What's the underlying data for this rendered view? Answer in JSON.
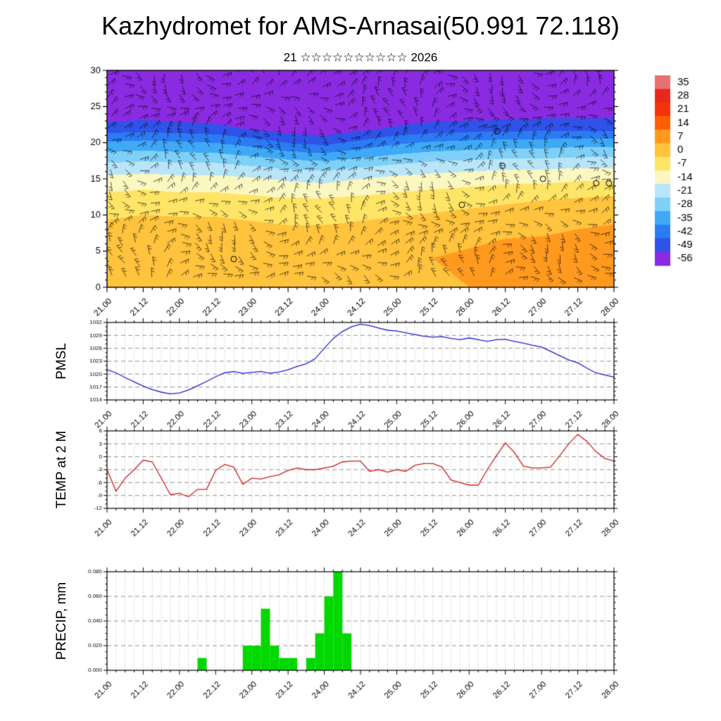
{
  "header": {
    "title": "Kazhydromet for AMS-Arnasai(50.991 72.118)",
    "subtitle": "21 ☆☆☆☆☆☆☆☆☆☆ 2026"
  },
  "panels": {
    "pmsl_label": "PMSL",
    "temp_label": "TEMP at 2 M",
    "precip_label": "PRECIP, mm"
  },
  "chart_data": [
    {
      "type": "heatmap",
      "name": "temperature-height-time-section",
      "ylim": [
        0,
        30
      ],
      "yticks": [
        0,
        5,
        10,
        15,
        20,
        25,
        30
      ],
      "x_labels": [
        "21.00",
        "21.12",
        "22.00",
        "22.12",
        "23.00",
        "23.12",
        "24.00",
        "24.12",
        "25.00",
        "25.12",
        "26.00",
        "26.12",
        "27.00",
        "27.12",
        "28.00"
      ],
      "overlay": "wind-barbs",
      "heights": [
        0,
        4,
        8,
        12,
        15,
        17,
        20,
        22,
        25,
        30
      ],
      "values": [
        [
          4,
          5,
          4,
          5,
          4,
          4,
          3,
          4,
          5,
          6,
          7,
          8,
          9,
          10,
          11
        ],
        [
          5,
          6,
          5,
          6,
          5,
          4,
          4,
          5,
          6,
          7,
          8,
          9,
          10,
          11,
          12
        ],
        [
          2,
          3,
          3,
          3,
          2,
          1,
          1,
          2,
          3,
          4,
          5,
          6,
          6,
          7,
          8
        ],
        [
          -4,
          -3,
          -4,
          -4,
          -5,
          -6,
          -6,
          -5,
          -4,
          -3,
          -2,
          -1,
          0,
          1,
          2
        ],
        [
          -12,
          -11,
          -12,
          -12,
          -13,
          -15,
          -16,
          -14,
          -12,
          -11,
          -10,
          -9,
          -9,
          -8,
          -8
        ],
        [
          -20,
          -19,
          -20,
          -20,
          -22,
          -24,
          -25,
          -23,
          -21,
          -19,
          -18,
          -17,
          -17,
          -16,
          -16
        ],
        [
          -34,
          -33,
          -34,
          -35,
          -38,
          -42,
          -44,
          -40,
          -36,
          -34,
          -33,
          -32,
          -32,
          -31,
          -31
        ],
        [
          -46,
          -45,
          -46,
          -47,
          -50,
          -53,
          -54,
          -51,
          -48,
          -46,
          -45,
          -45,
          -44,
          -44,
          -44
        ],
        [
          -56,
          -55,
          -56,
          -57,
          -58,
          -59,
          -59,
          -58,
          -57,
          -56,
          -56,
          -55,
          -55,
          -55,
          -55
        ],
        [
          -58,
          -58,
          -58,
          -58,
          -59,
          -60,
          -60,
          -59,
          -58,
          -58,
          -58,
          -58,
          -58,
          -58,
          -58
        ]
      ],
      "calm_markers": [
        [
          0.25,
          0.87
        ],
        [
          0.7,
          0.62
        ],
        [
          0.78,
          0.44
        ],
        [
          0.86,
          0.5
        ],
        [
          0.965,
          0.52
        ],
        [
          0.99,
          0.52
        ],
        [
          0.77,
          0.28
        ]
      ],
      "colorbar": {
        "labels": [
          "35",
          "28",
          "21",
          "14",
          "7",
          "0",
          "-7",
          "-14",
          "-21",
          "-28",
          "-35",
          "-42",
          "-49",
          "-56"
        ],
        "colors": [
          "#e87070",
          "#e8281e",
          "#f5330a",
          "#ff5f00",
          "#ff9a1f",
          "#ffc33d",
          "#ffe566",
          "#fbf7c0",
          "#b9e5f9",
          "#7fd0f8",
          "#3fa9f6",
          "#2b7bf3",
          "#2f52e8",
          "#8a2be2"
        ]
      }
    },
    {
      "type": "line",
      "name": "PMSL",
      "color": "#2020cc",
      "ylim": [
        1014,
        1032
      ],
      "yticks": [
        1014,
        1017,
        1020,
        1023,
        1026,
        1029,
        1032
      ],
      "yminor_div": 3,
      "values": [
        1021,
        1020.3,
        1019.2,
        1018.2,
        1017.2,
        1016.4,
        1015.8,
        1015.4,
        1015.6,
        1016.3,
        1017.3,
        1018.3,
        1019.4,
        1020.3,
        1020.6,
        1020.2,
        1020.4,
        1020.6,
        1020.2,
        1020.5,
        1021,
        1021.8,
        1022.4,
        1023.6,
        1026,
        1028.3,
        1029.9,
        1031,
        1031.6,
        1031.3,
        1030.7,
        1030.2,
        1030,
        1029.6,
        1029.2,
        1028.8,
        1028.6,
        1028.7,
        1028.3,
        1028,
        1028.4,
        1028,
        1027.6,
        1028,
        1028.1,
        1027.6,
        1027.2,
        1026.7,
        1026.3,
        1025.3,
        1024.3,
        1023.3,
        1022.6,
        1021.4,
        1020.3,
        1019.8,
        1019.3
      ]
    },
    {
      "type": "line",
      "name": "TEMP at 2 M",
      "color": "#cc2020",
      "ylim": [
        -12,
        6
      ],
      "yticks": [
        -12,
        -9,
        -6,
        -3,
        0,
        3,
        6
      ],
      "yminor_div": 3,
      "values": [
        -3,
        -8,
        -5,
        -3,
        -0.8,
        -1.2,
        -5,
        -8.8,
        -8.5,
        -9.3,
        -7.6,
        -7.6,
        -3.2,
        -1.8,
        -2.4,
        -6.4,
        -5,
        -5.2,
        -4.6,
        -4.2,
        -3.2,
        -2.6,
        -3,
        -3,
        -2.6,
        -2.2,
        -1.2,
        -1,
        -1,
        -3.4,
        -3,
        -3.6,
        -3,
        -3.4,
        -2,
        -1.6,
        -1.6,
        -2.4,
        -5.4,
        -6,
        -6.6,
        -6.6,
        -3,
        0.2,
        3.2,
        1,
        -2.2,
        -2.6,
        -2.6,
        -2.4,
        0.2,
        3,
        5.2,
        3.6,
        1.2,
        -0.4,
        -1
      ]
    },
    {
      "type": "bar",
      "name": "PRECIP, mm",
      "color": "#00d800",
      "ylim": [
        0,
        0.08
      ],
      "yticks": [
        "0.000",
        "0.020",
        "0.040",
        "0.060",
        "0.080"
      ],
      "yminor_div": 4,
      "values": [
        0,
        0,
        0,
        0,
        0,
        0,
        0,
        0,
        0,
        0,
        0.01,
        0,
        0,
        0,
        0,
        0.02,
        0.02,
        0.05,
        0.02,
        0.01,
        0.01,
        0,
        0.01,
        0.03,
        0.06,
        0.08,
        0.03,
        0,
        0,
        0,
        0,
        0,
        0,
        0,
        0,
        0,
        0,
        0,
        0,
        0,
        0,
        0,
        0,
        0,
        0,
        0,
        0,
        0,
        0,
        0,
        0,
        0,
        0,
        0,
        0,
        0,
        0
      ]
    }
  ]
}
